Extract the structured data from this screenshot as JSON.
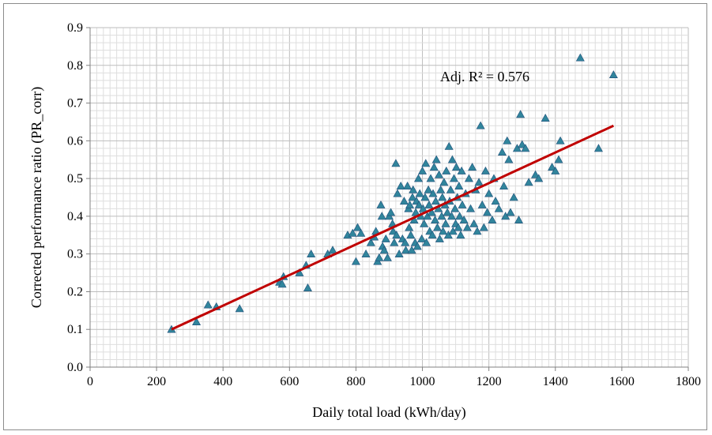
{
  "chart_data": {
    "type": "scatter",
    "title": "",
    "xlabel": "Daily total load (kWh/day)",
    "ylabel": "Corrected performance ratio (PR_corr)",
    "xlim": [
      0,
      1800
    ],
    "ylim": [
      0.0,
      0.9
    ],
    "x_ticks": [
      "0",
      "200",
      "400",
      "600",
      "800",
      "1000",
      "1200",
      "1400",
      "1600",
      "1800"
    ],
    "y_ticks": [
      "0.0",
      "0.1",
      "0.2",
      "0.3",
      "0.4",
      "0.5",
      "0.6",
      "0.7",
      "0.8",
      "0.9"
    ],
    "grid": true,
    "marker": "triangle",
    "marker_color": "#31859c",
    "marker_edge": "#1f4e79",
    "trendline": {
      "x": [
        245,
        1575
      ],
      "y": [
        0.1,
        0.64
      ],
      "color": "#c00000"
    },
    "annotation": "Adj. R² = 0.576",
    "points": [
      [
        245,
        0.1
      ],
      [
        320,
        0.12
      ],
      [
        355,
        0.165
      ],
      [
        380,
        0.16
      ],
      [
        450,
        0.155
      ],
      [
        570,
        0.225
      ],
      [
        578,
        0.22
      ],
      [
        582,
        0.24
      ],
      [
        630,
        0.25
      ],
      [
        650,
        0.27
      ],
      [
        655,
        0.21
      ],
      [
        665,
        0.3
      ],
      [
        715,
        0.3
      ],
      [
        730,
        0.31
      ],
      [
        775,
        0.35
      ],
      [
        790,
        0.355
      ],
      [
        800,
        0.28
      ],
      [
        805,
        0.37
      ],
      [
        815,
        0.355
      ],
      [
        830,
        0.3
      ],
      [
        845,
        0.33
      ],
      [
        855,
        0.345
      ],
      [
        860,
        0.36
      ],
      [
        865,
        0.28
      ],
      [
        870,
        0.29
      ],
      [
        875,
        0.43
      ],
      [
        878,
        0.4
      ],
      [
        880,
        0.32
      ],
      [
        885,
        0.31
      ],
      [
        890,
        0.34
      ],
      [
        895,
        0.29
      ],
      [
        900,
        0.4
      ],
      [
        905,
        0.41
      ],
      [
        910,
        0.38
      ],
      [
        912,
        0.36
      ],
      [
        915,
        0.33
      ],
      [
        920,
        0.54
      ],
      [
        922,
        0.35
      ],
      [
        925,
        0.46
      ],
      [
        930,
        0.3
      ],
      [
        935,
        0.48
      ],
      [
        940,
        0.34
      ],
      [
        945,
        0.44
      ],
      [
        948,
        0.33
      ],
      [
        950,
        0.31
      ],
      [
        955,
        0.48
      ],
      [
        958,
        0.42
      ],
      [
        960,
        0.37
      ],
      [
        962,
        0.43
      ],
      [
        965,
        0.35
      ],
      [
        968,
        0.31
      ],
      [
        970,
        0.45
      ],
      [
        972,
        0.47
      ],
      [
        975,
        0.39
      ],
      [
        978,
        0.33
      ],
      [
        980,
        0.41
      ],
      [
        982,
        0.44
      ],
      [
        985,
        0.32
      ],
      [
        988,
        0.5
      ],
      [
        990,
        0.43
      ],
      [
        992,
        0.46
      ],
      [
        995,
        0.4
      ],
      [
        998,
        0.34
      ],
      [
        1000,
        0.52
      ],
      [
        1002,
        0.42
      ],
      [
        1005,
        0.38
      ],
      [
        1008,
        0.45
      ],
      [
        1010,
        0.54
      ],
      [
        1012,
        0.33
      ],
      [
        1015,
        0.4
      ],
      [
        1018,
        0.47
      ],
      [
        1020,
        0.43
      ],
      [
        1022,
        0.36
      ],
      [
        1025,
        0.5
      ],
      [
        1028,
        0.41
      ],
      [
        1030,
        0.35
      ],
      [
        1032,
        0.46
      ],
      [
        1035,
        0.53
      ],
      [
        1038,
        0.39
      ],
      [
        1040,
        0.44
      ],
      [
        1042,
        0.55
      ],
      [
        1045,
        0.37
      ],
      [
        1048,
        0.42
      ],
      [
        1050,
        0.51
      ],
      [
        1052,
        0.34
      ],
      [
        1055,
        0.47
      ],
      [
        1058,
        0.4
      ],
      [
        1060,
        0.45
      ],
      [
        1062,
        0.36
      ],
      [
        1065,
        0.49
      ],
      [
        1068,
        0.43
      ],
      [
        1070,
        0.38
      ],
      [
        1072,
        0.52
      ],
      [
        1075,
        0.41
      ],
      [
        1078,
        0.35
      ],
      [
        1080,
        0.585
      ],
      [
        1082,
        0.44
      ],
      [
        1085,
        0.47
      ],
      [
        1088,
        0.4
      ],
      [
        1090,
        0.55
      ],
      [
        1092,
        0.36
      ],
      [
        1095,
        0.5
      ],
      [
        1098,
        0.42
      ],
      [
        1100,
        0.38
      ],
      [
        1102,
        0.53
      ],
      [
        1105,
        0.45
      ],
      [
        1108,
        0.37
      ],
      [
        1110,
        0.48
      ],
      [
        1112,
        0.4
      ],
      [
        1115,
        0.35
      ],
      [
        1118,
        0.52
      ],
      [
        1120,
        0.43
      ],
      [
        1125,
        0.39
      ],
      [
        1130,
        0.46
      ],
      [
        1135,
        0.37
      ],
      [
        1140,
        0.5
      ],
      [
        1145,
        0.42
      ],
      [
        1150,
        0.53
      ],
      [
        1155,
        0.38
      ],
      [
        1160,
        0.47
      ],
      [
        1165,
        0.36
      ],
      [
        1170,
        0.49
      ],
      [
        1175,
        0.64
      ],
      [
        1180,
        0.43
      ],
      [
        1185,
        0.37
      ],
      [
        1190,
        0.52
      ],
      [
        1195,
        0.41
      ],
      [
        1200,
        0.46
      ],
      [
        1210,
        0.39
      ],
      [
        1215,
        0.5
      ],
      [
        1220,
        0.44
      ],
      [
        1230,
        0.42
      ],
      [
        1240,
        0.57
      ],
      [
        1245,
        0.48
      ],
      [
        1250,
        0.4
      ],
      [
        1255,
        0.6
      ],
      [
        1260,
        0.55
      ],
      [
        1265,
        0.41
      ],
      [
        1275,
        0.45
      ],
      [
        1285,
        0.58
      ],
      [
        1290,
        0.39
      ],
      [
        1295,
        0.67
      ],
      [
        1300,
        0.59
      ],
      [
        1310,
        0.58
      ],
      [
        1320,
        0.49
      ],
      [
        1340,
        0.51
      ],
      [
        1350,
        0.5
      ],
      [
        1370,
        0.66
      ],
      [
        1390,
        0.53
      ],
      [
        1400,
        0.52
      ],
      [
        1410,
        0.55
      ],
      [
        1415,
        0.6
      ],
      [
        1475,
        0.82
      ],
      [
        1530,
        0.58
      ],
      [
        1575,
        0.775
      ]
    ]
  }
}
